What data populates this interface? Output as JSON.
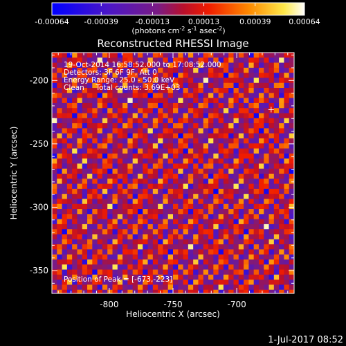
{
  "chart_data": {
    "type": "heatmap",
    "title": "Reconstructed RHESSI Image",
    "xlabel": "Heliocentric X (arcsec)",
    "ylabel": "Heliocentric Y (arcsec)",
    "xlim": [
      -845,
      -655
    ],
    "ylim": [
      -368,
      -178
    ],
    "x_ticks": [
      -800,
      -750,
      -700
    ],
    "y_ticks": [
      -200,
      -250,
      -300,
      -350
    ],
    "colorbar": {
      "min": -0.00064,
      "max": 0.00064,
      "colormap": "blue-purple-red-orange-yellow-white",
      "tick_values": [
        -0.00064,
        -0.00039,
        -0.00013,
        0.00013,
        0.00039,
        0.00064
      ],
      "tick_labels": [
        "-0.00064",
        "-0.00039",
        "-0.00013",
        "0.00013",
        "0.00039",
        "0.00064"
      ],
      "units_text": "(photons cm",
      "units_sup1": "-2",
      "units_mid": " s",
      "units_sup2": "-1",
      "units_end": " asec",
      "units_sup3": "-2",
      "units_close": ")"
    },
    "annotations": {
      "time_range": "19-Oct-2014 16:58:52.000 to 17:08:52.000",
      "detectors": "Detectors: 3F 6F 9F, Att 0",
      "energy": "Energy Range: 25.0 - 50.0 keV",
      "method": "Clean     Total counts: 3.69E+03",
      "peak": "Position of Peak = [-673,-223]"
    },
    "peak_position": [
      -673,
      -223
    ],
    "grid": false
  },
  "footer": {
    "timestamp": "1-Jul-2017 08:52"
  }
}
